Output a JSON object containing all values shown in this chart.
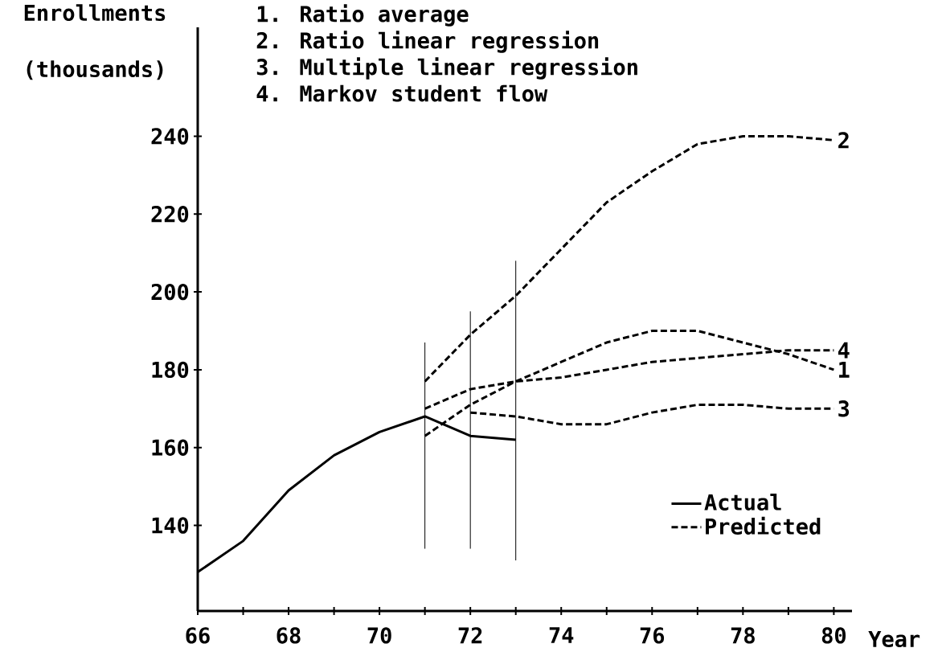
{
  "chart_data": {
    "type": "line",
    "xlabel": "Year",
    "ylabel": "Enrollments (thousands)",
    "annotations": [
      "1. Ratio average",
      "2. Ratio linear regression",
      "3. Multiple linear regression",
      "4. Markov student flow",
      "Predicted"
    ],
    "xlim": [
      66,
      80.4
    ],
    "ylim": [
      118,
      268
    ],
    "xticks": [
      66,
      {
        "value": 67,
        "label": null
      },
      68,
      {
        "value": 69,
        "label": null
      },
      70,
      {
        "value": 71,
        "label": null
      },
      72,
      {
        "value": 73,
        "label": null
      },
      74,
      {
        "value": 75,
        "label": null
      },
      76,
      {
        "value": 77,
        "label": null
      },
      78,
      {
        "value": 79,
        "label": null
      },
      80
    ],
    "yticks": [
      140,
      160,
      180,
      200,
      220,
      240
    ],
    "legend": "bottom right",
    "series": [
      {
        "name": "Actual",
        "color": "#000000",
        "line_style": "solid",
        "x": [
          66,
          67,
          68,
          69,
          70,
          71,
          72,
          73
        ],
        "values": [
          128,
          136,
          149,
          158,
          164,
          168,
          163,
          162
        ]
      },
      {
        "name": "1",
        "color": "#000000",
        "line_style": "dashed",
        "x": [
          71,
          72,
          73,
          74,
          75,
          76,
          77,
          78,
          79,
          80
        ],
        "values": [
          163,
          171,
          177,
          182,
          187,
          190,
          190,
          187,
          184,
          180
        ]
      },
      {
        "name": "2",
        "color": "#000000",
        "line_style": "dashed",
        "x": [
          71,
          72,
          73,
          74,
          75,
          76,
          77,
          78,
          79,
          80
        ],
        "values": [
          177,
          189,
          199,
          211,
          223,
          231,
          238,
          240,
          240,
          239
        ]
      },
      {
        "name": "3",
        "color": "#000000",
        "line_style": "dashed",
        "x": [
          72,
          73,
          74,
          75,
          76,
          77,
          78,
          79,
          80
        ],
        "values": [
          169,
          168,
          166,
          166,
          169,
          171,
          171,
          170,
          170
        ]
      },
      {
        "name": "4",
        "color": "#000000",
        "line_style": "dashed",
        "x": [
          71,
          72,
          73,
          74,
          75,
          76,
          77,
          78,
          79,
          80
        ],
        "values": [
          170,
          175,
          177,
          178,
          180,
          182,
          183,
          184,
          185,
          185
        ]
      },
      {
        "color": "#000000",
        "line_style": "solid",
        "x": [
          71,
          71
        ],
        "values": [
          187,
          134
        ]
      },
      {
        "color": "#000000",
        "line_style": "solid",
        "x": [
          72,
          72
        ],
        "values": [
          195,
          134
        ]
      },
      {
        "color": "#000000",
        "line_style": "solid",
        "x": [
          73,
          73
        ],
        "values": [
          208,
          131
        ]
      }
    ]
  }
}
